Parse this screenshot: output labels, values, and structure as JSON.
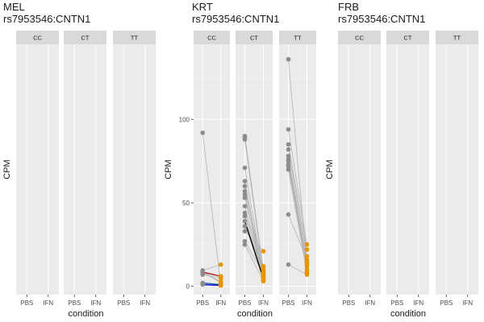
{
  "chart_data": [
    {
      "type": "line",
      "title": "MEL",
      "subtitle": "rs7953546:CNTN1",
      "xlabel": "condition",
      "ylabel": "CPM",
      "x_categories": [
        "PBS",
        "IFN"
      ],
      "facets": [
        {
          "label": "CC",
          "pairs": []
        },
        {
          "label": "CT",
          "pairs": []
        },
        {
          "label": "TT",
          "pairs": []
        }
      ],
      "yticks": [],
      "ylim": [
        -5,
        145
      ],
      "grid": true
    },
    {
      "type": "line",
      "title": "KRT",
      "subtitle": "rs7953546:CNTN1",
      "xlabel": "condition",
      "ylabel": "CPM",
      "x_categories": [
        "PBS",
        "IFN"
      ],
      "yticks": [
        0,
        50,
        100
      ],
      "ylim": [
        -5,
        145
      ],
      "grid": true,
      "point_colors": {
        "PBS": "#8c8c8c",
        "IFN": "#e69500"
      },
      "facets": [
        {
          "label": "CC",
          "pairs": [
            {
              "pbs": 92,
              "ifn": 0.5,
              "color": "#b3b3b3"
            },
            {
              "pbs": 9.5,
              "ifn": 13,
              "color": "#b3b3b3"
            },
            {
              "pbs": 9,
              "ifn": 2,
              "color": "#b3b3b3"
            },
            {
              "pbs": 8.5,
              "ifn": 6,
              "color": "#b22222"
            },
            {
              "pbs": 8,
              "ifn": 3,
              "color": "#b3b3b3"
            },
            {
              "pbs": 7,
              "ifn": 5,
              "color": "#b3b3b3"
            },
            {
              "pbs": 2,
              "ifn": 1,
              "color": "#2d6a9f"
            },
            {
              "pbs": 1,
              "ifn": 0.5,
              "color": "#0000dd"
            }
          ]
        },
        {
          "label": "CT",
          "pairs": [
            {
              "pbs": 90,
              "ifn": 9,
              "color": "#b3b3b3"
            },
            {
              "pbs": 89,
              "ifn": 8,
              "color": "#b3b3b3"
            },
            {
              "pbs": 88,
              "ifn": 7,
              "color": "#b3b3b3"
            },
            {
              "pbs": 71,
              "ifn": 6,
              "color": "#b3b3b3"
            },
            {
              "pbs": 63,
              "ifn": 5,
              "color": "#b3b3b3"
            },
            {
              "pbs": 60,
              "ifn": 4,
              "color": "#b3b3b3"
            },
            {
              "pbs": 57,
              "ifn": 12,
              "color": "#b3b3b3"
            },
            {
              "pbs": 55,
              "ifn": 3.5,
              "color": "#b3b3b3"
            },
            {
              "pbs": 53,
              "ifn": 8,
              "color": "#b3b3b3"
            },
            {
              "pbs": 48,
              "ifn": 5.5,
              "color": "#b3b3b3"
            },
            {
              "pbs": 44,
              "ifn": 10,
              "color": "#b3b3b3"
            },
            {
              "pbs": 42,
              "ifn": 6,
              "color": "#b3b3b3"
            },
            {
              "pbs": 39,
              "ifn": 4.5,
              "color": "#000000"
            },
            {
              "pbs": 36,
              "ifn": 11,
              "color": "#b3b3b3"
            },
            {
              "pbs": 33,
              "ifn": 21,
              "color": "#b3b3b3"
            },
            {
              "pbs": 27,
              "ifn": 7.5,
              "color": "#b3b3b3"
            },
            {
              "pbs": 25,
              "ifn": 3,
              "color": "#b3b3b3"
            }
          ]
        },
        {
          "label": "TT",
          "pairs": [
            {
              "pbs": 136,
              "ifn": 13,
              "color": "#b3b3b3"
            },
            {
              "pbs": 94,
              "ifn": 25,
              "color": "#b3b3b3"
            },
            {
              "pbs": 85,
              "ifn": 22,
              "color": "#b3b3b3"
            },
            {
              "pbs": 82,
              "ifn": 18,
              "color": "#b3b3b3"
            },
            {
              "pbs": 78,
              "ifn": 15,
              "color": "#b3b3b3"
            },
            {
              "pbs": 76,
              "ifn": 14,
              "color": "#b3b3b3"
            },
            {
              "pbs": 75,
              "ifn": 12,
              "color": "#b3b3b3"
            },
            {
              "pbs": 73,
              "ifn": 10,
              "color": "#b3b3b3"
            },
            {
              "pbs": 72,
              "ifn": 9,
              "color": "#b3b3b3"
            },
            {
              "pbs": 70,
              "ifn": 8,
              "color": "#b3b3b3"
            },
            {
              "pbs": 43,
              "ifn": 16,
              "color": "#b3b3b3"
            },
            {
              "pbs": 13,
              "ifn": 7,
              "color": "#b3b3b3"
            }
          ]
        }
      ]
    },
    {
      "type": "line",
      "title": "FRB",
      "subtitle": "rs7953546:CNTN1",
      "xlabel": "condition",
      "ylabel": "CPM",
      "x_categories": [
        "PBS",
        "IFN"
      ],
      "facets": [
        {
          "label": "CC",
          "pairs": []
        },
        {
          "label": "CT",
          "pairs": []
        },
        {
          "label": "TT",
          "pairs": []
        }
      ],
      "yticks": [],
      "ylim": [
        -5,
        145
      ],
      "grid": true
    }
  ]
}
